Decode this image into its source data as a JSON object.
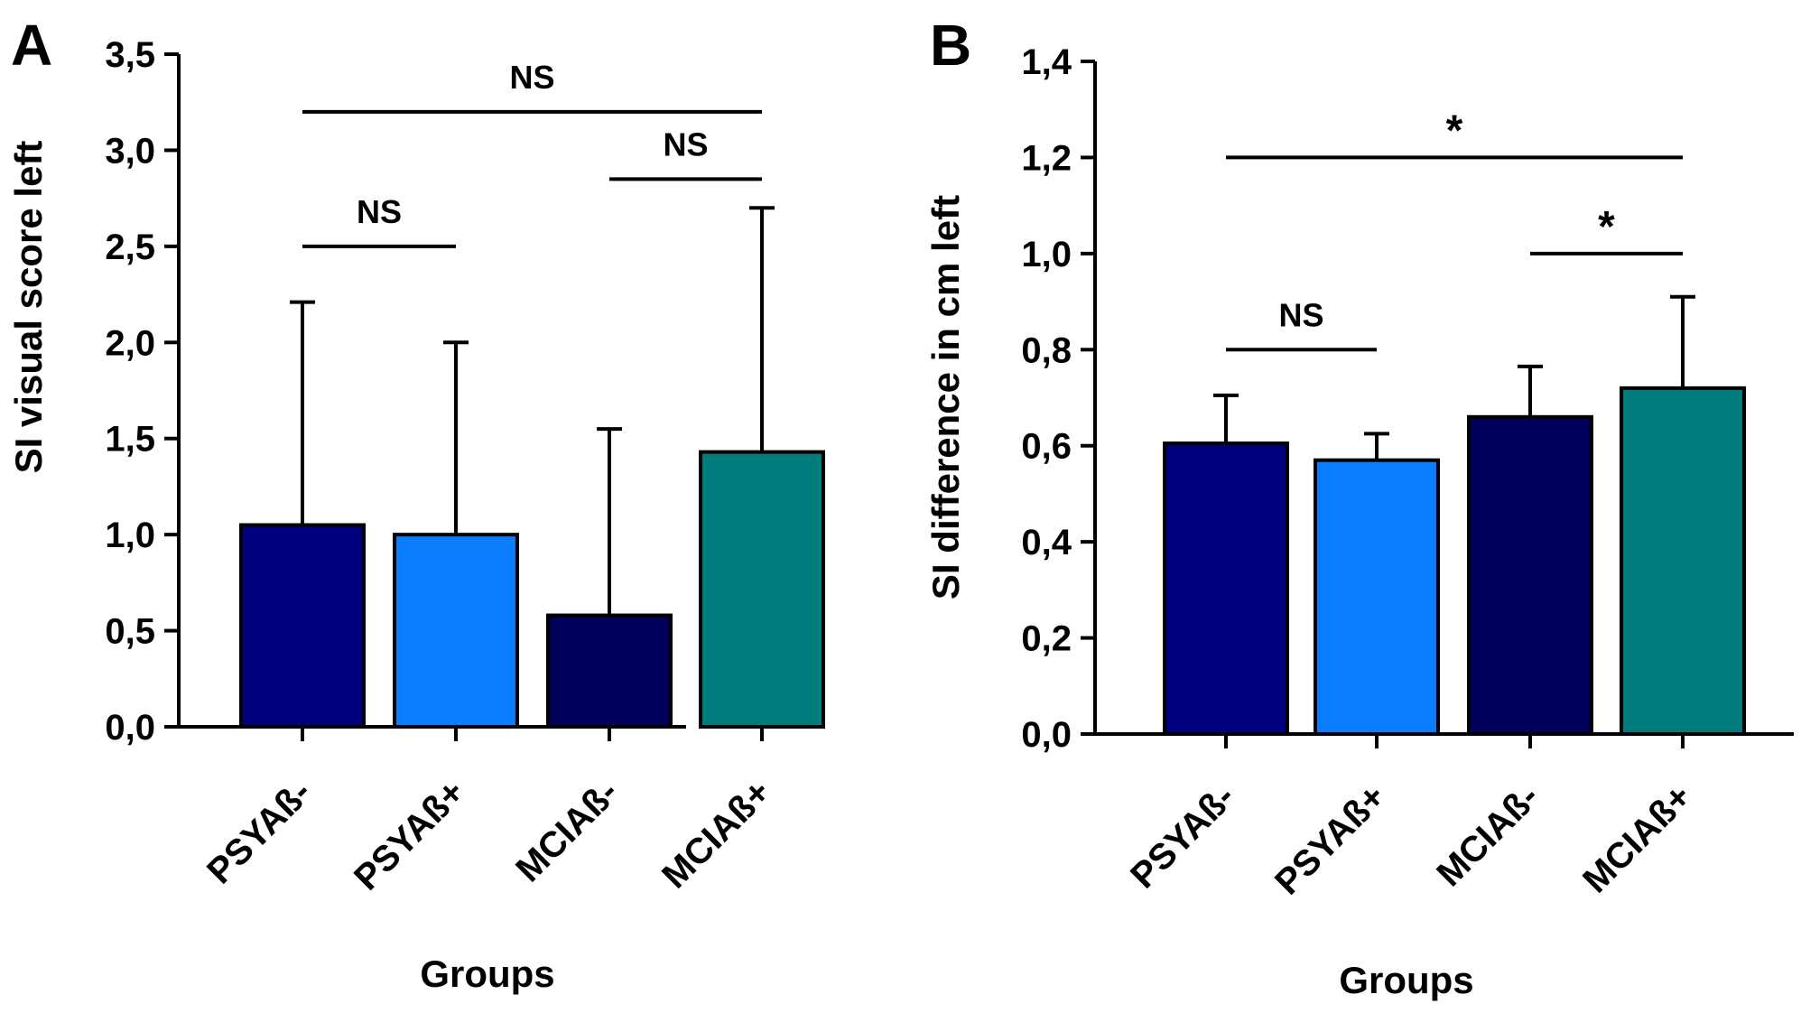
{
  "chart_data": [
    {
      "panel": "A",
      "type": "bar",
      "categories": [
        "PSYAß-",
        "PSYAß+",
        "MCIAß-",
        "MCIAß+"
      ],
      "values": [
        1.05,
        1.0,
        0.58,
        1.43
      ],
      "error_upper": [
        2.21,
        2.0,
        1.55,
        2.7
      ],
      "colors": [
        "#00007f",
        "#0a7cff",
        "#00005a",
        "#017c7c"
      ],
      "xlabel": "Groups",
      "ylabel": "SI visual score left",
      "ylim": [
        0,
        3.5
      ],
      "yticks": [
        "0,0",
        "0,5",
        "1,0",
        "1,5",
        "2,0",
        "2,5",
        "3,0",
        "3,5"
      ],
      "significance": [
        {
          "from": 0,
          "to": 3,
          "y": 3.2,
          "label": "NS"
        },
        {
          "from": 2,
          "to": 3,
          "y": 2.85,
          "label": "NS"
        },
        {
          "from": 0,
          "to": 1,
          "y": 2.5,
          "label": "NS"
        }
      ]
    },
    {
      "panel": "B",
      "type": "bar",
      "categories": [
        "PSYAß-",
        "PSYAß+",
        "MCIAß-",
        "MCIAß+"
      ],
      "values": [
        0.605,
        0.57,
        0.66,
        0.72
      ],
      "error_upper": [
        0.705,
        0.625,
        0.765,
        0.91
      ],
      "colors": [
        "#00007f",
        "#0a7cff",
        "#00005a",
        "#017c7c"
      ],
      "xlabel": "Groups",
      "ylabel": "SI difference in cm left",
      "ylim": [
        0,
        1.4
      ],
      "yticks": [
        "0,0",
        "0,2",
        "0,4",
        "0,6",
        "0,8",
        "1,0",
        "1,2",
        "1,4"
      ],
      "significance": [
        {
          "from": 0,
          "to": 3,
          "y": 1.2,
          "label": "*"
        },
        {
          "from": 2,
          "to": 3,
          "y": 1.0,
          "label": "*"
        },
        {
          "from": 0,
          "to": 1,
          "y": 0.8,
          "label": "NS"
        }
      ]
    }
  ]
}
